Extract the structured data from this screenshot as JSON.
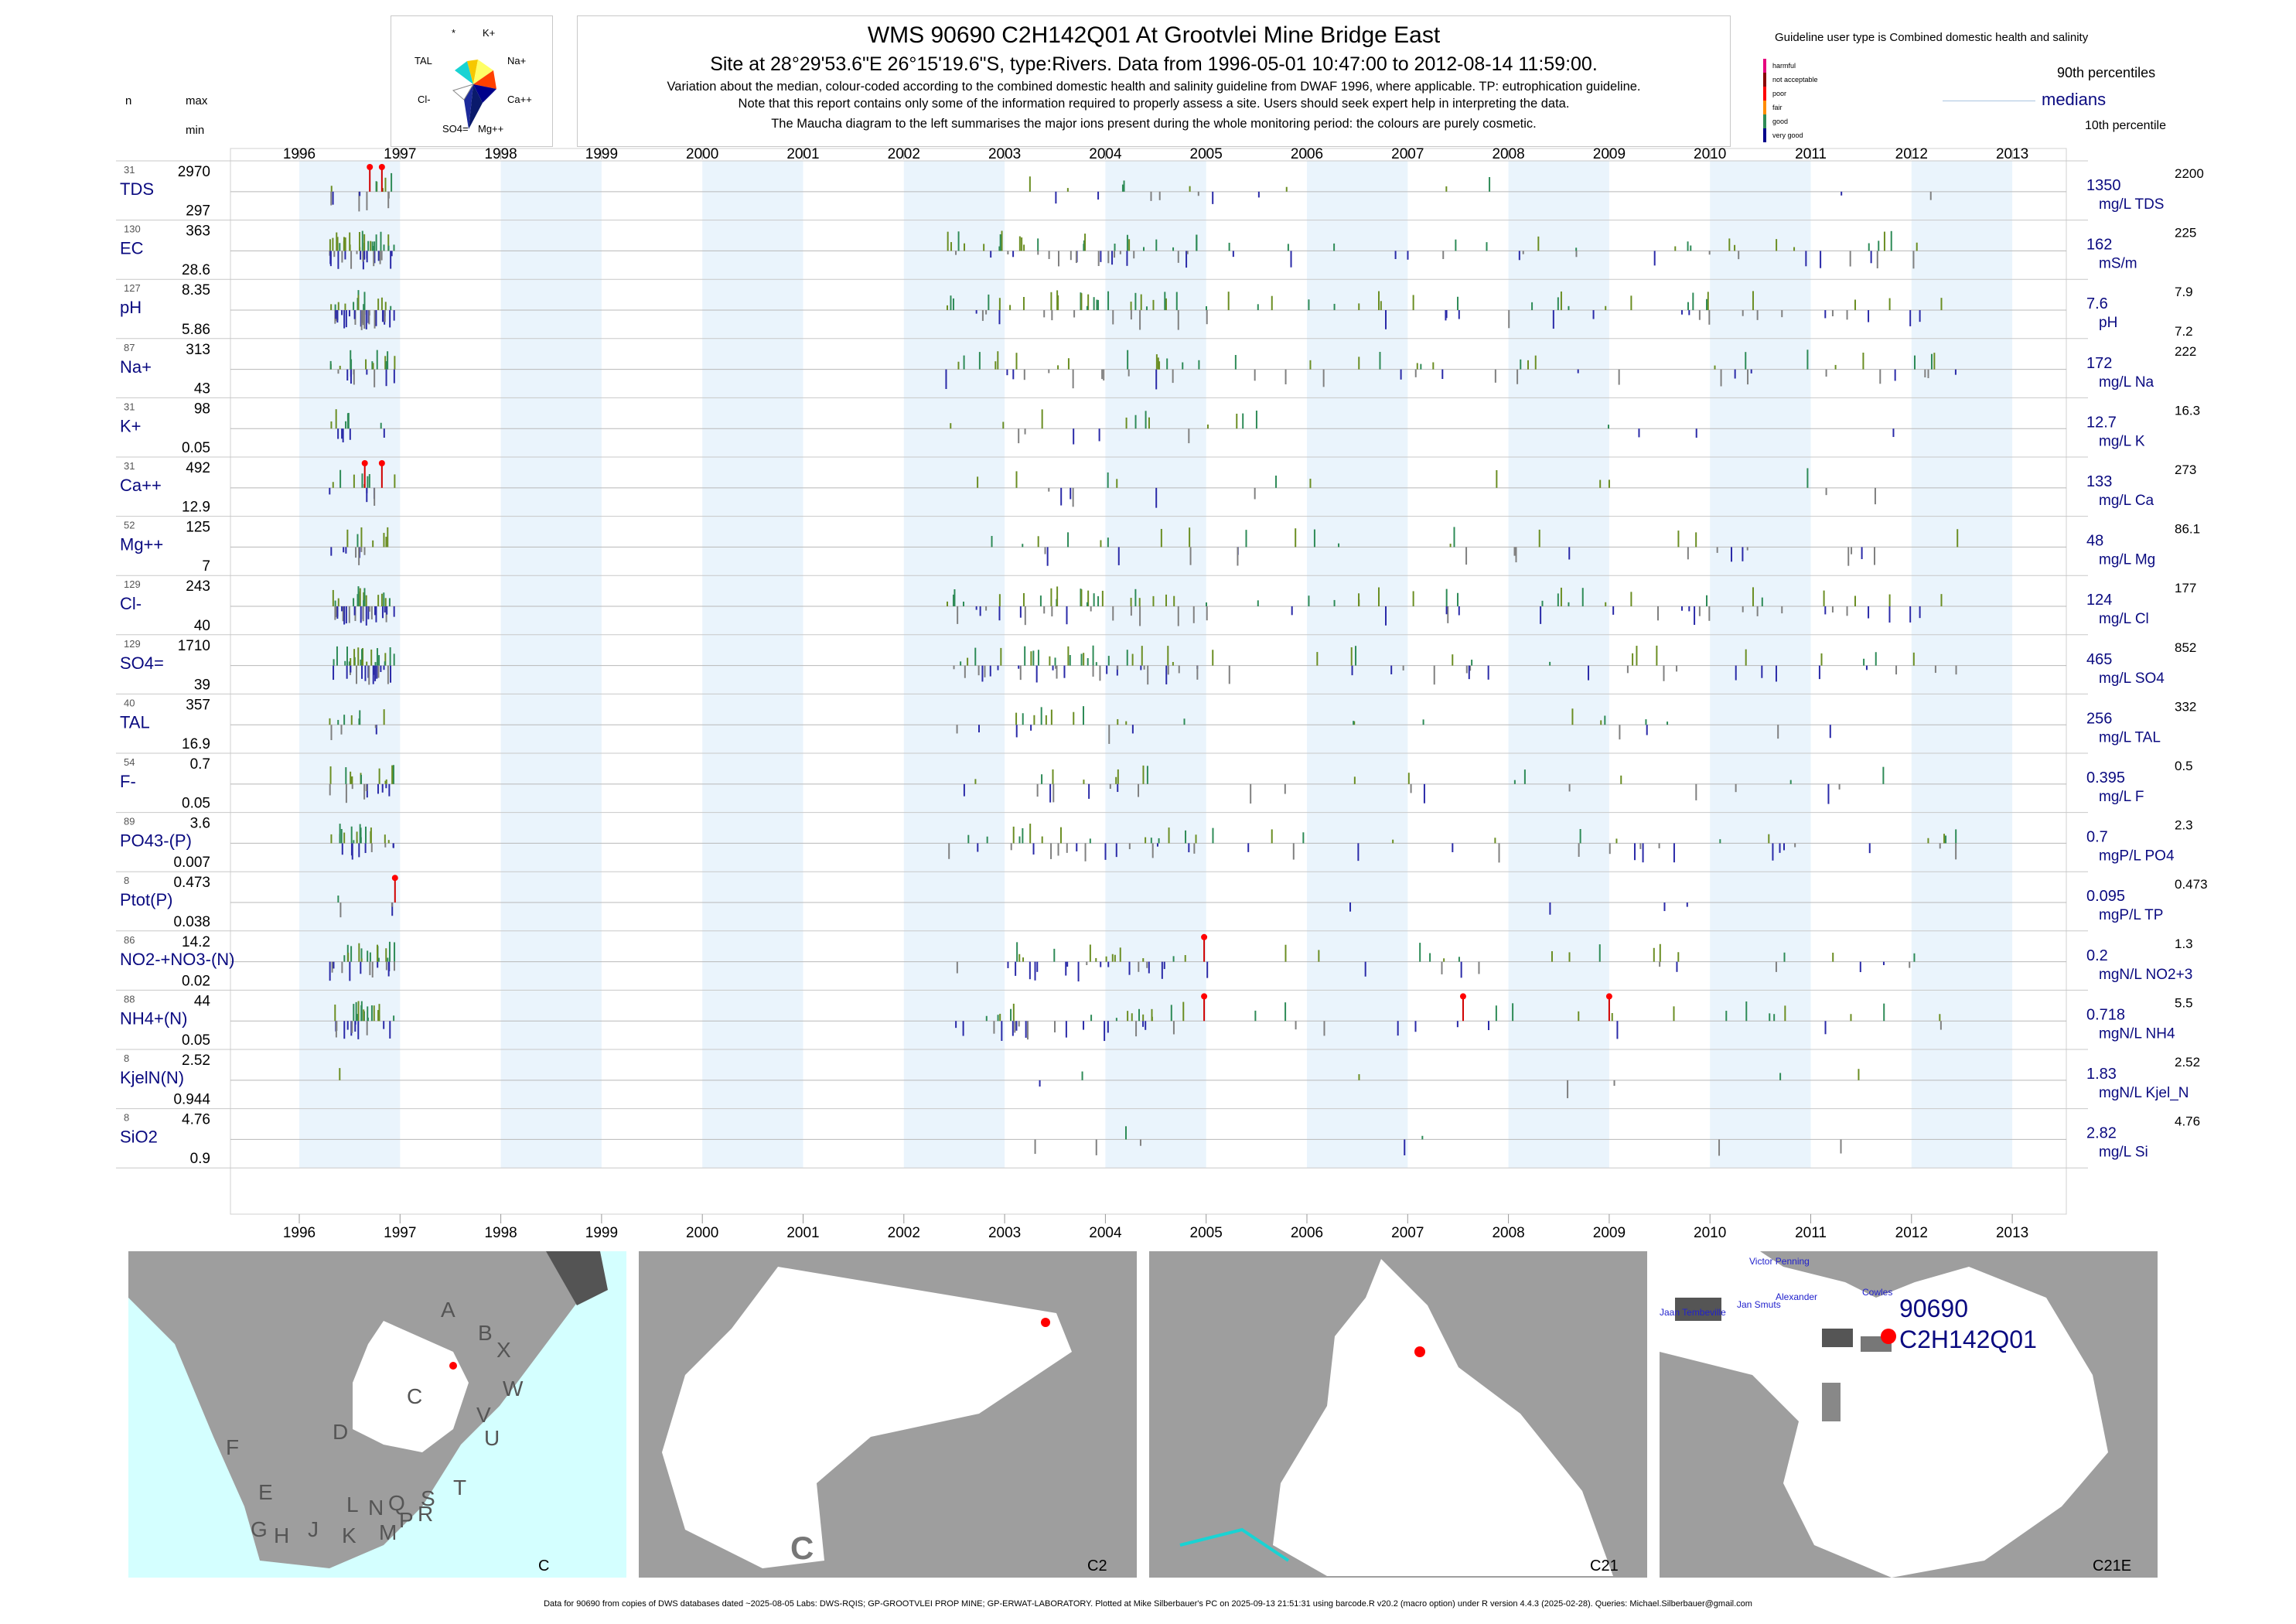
{
  "header": {
    "title": "WMS 90690 C2H142Q01 At Grootvlei Mine Bridge East",
    "subtitle": "Site at 28°29'53.6\"E 26°15'19.6\"S, type:Rivers.  Data from 1996-05-01 10:47:00 to 2012-08-14 11:59:00.",
    "note1": "Variation about the median,  colour-coded according to the combined domestic health and salinity guideline from DWAF 1996, where applicable. TP: eutrophication guideline.",
    "note2": "Note that this report contains only some of the information required to properly assess a site. Users should seek expert help in interpreting the data.",
    "note3": "The Maucha diagram to the left summarises the major ions present during the whole monitoring period: the colours are purely cosmetic."
  },
  "column_heads": {
    "n": "n",
    "max": "max",
    "min": "min"
  },
  "maucha": {
    "labels": [
      "*",
      "K+",
      "TAL",
      "Na+",
      "Cl-",
      "Ca++",
      "SO4=",
      "Mg++"
    ]
  },
  "legend": {
    "guideline_text": "Guideline user type is Combined domestic health and salinity",
    "classes": [
      "harmful",
      "not acceptable",
      "poor",
      "fair",
      "good",
      "very good"
    ],
    "class_colors": [
      "#e6007e",
      "#8b0000",
      "#ff0000",
      "#ff8c00",
      "#2e8b57",
      "#00008b"
    ],
    "p90": "90th percentiles",
    "medians": "medians",
    "p10": "10th percentile"
  },
  "chart_data": {
    "type": "bar",
    "x_range": [
      1996,
      2013
    ],
    "years": [
      "1996",
      "1997",
      "1998",
      "1999",
      "2000",
      "2001",
      "2002",
      "2003",
      "2004",
      "2005",
      "2006",
      "2007",
      "2008",
      "2009",
      "2010",
      "2011",
      "2012",
      "2013"
    ],
    "series": [
      {
        "n": "31",
        "max": "2970",
        "min": "297",
        "name": "TDS",
        "median": "1350",
        "unit": "mg/L TDS",
        "p90": "2200",
        "p10": ""
      },
      {
        "n": "130",
        "max": "363",
        "min": "28.6",
        "name": "EC",
        "median": "162",
        "unit": "mS/m",
        "p90": "225",
        "p10": ""
      },
      {
        "n": "127",
        "max": "8.35",
        "min": "5.86",
        "name": "pH",
        "median": "7.6",
        "unit": "pH",
        "p90": "7.9",
        "p10": "7.2"
      },
      {
        "n": "87",
        "max": "313",
        "min": "43",
        "name": "Na+",
        "median": "172",
        "unit": "mg/L Na",
        "p90": "222",
        "p10": ""
      },
      {
        "n": "31",
        "max": "98",
        "min": "0.05",
        "name": "K+",
        "median": "12.7",
        "unit": "mg/L K",
        "p90": "16.3",
        "p10": ""
      },
      {
        "n": "31",
        "max": "492",
        "min": "12.9",
        "name": "Ca++",
        "median": "133",
        "unit": "mg/L Ca",
        "p90": "273",
        "p10": ""
      },
      {
        "n": "52",
        "max": "125",
        "min": "7",
        "name": "Mg++",
        "median": "48",
        "unit": "mg/L Mg",
        "p90": "86.1",
        "p10": ""
      },
      {
        "n": "129",
        "max": "243",
        "min": "40",
        "name": "Cl-",
        "median": "124",
        "unit": "mg/L Cl",
        "p90": "177",
        "p10": ""
      },
      {
        "n": "129",
        "max": "1710",
        "min": "39",
        "name": "SO4=",
        "median": "465",
        "unit": "mg/L SO4",
        "p90": "852",
        "p10": ""
      },
      {
        "n": "40",
        "max": "357",
        "min": "16.9",
        "name": "TAL",
        "median": "256",
        "unit": "mg/L TAL",
        "p90": "332",
        "p10": ""
      },
      {
        "n": "54",
        "max": "0.7",
        "min": "0.05",
        "name": "F-",
        "median": "0.395",
        "unit": "mg/L F",
        "p90": "0.5",
        "p10": ""
      },
      {
        "n": "89",
        "max": "3.6",
        "min": "0.007",
        "name": "PO43-(P)",
        "median": "0.7",
        "unit": "mgP/L PO4",
        "p90": "2.3",
        "p10": ""
      },
      {
        "n": "8",
        "max": "0.473",
        "min": "0.038",
        "name": "Ptot(P)",
        "median": "0.095",
        "unit": "mgP/L TP",
        "p90": "0.473",
        "p10": ""
      },
      {
        "n": "86",
        "max": "14.2",
        "min": "0.02",
        "name": "NO2-+NO3-(N)",
        "median": "0.2",
        "unit": "mgN/L NO2+3",
        "p90": "1.3",
        "p10": ""
      },
      {
        "n": "88",
        "max": "44",
        "min": "0.05",
        "name": "NH4+(N)",
        "median": "0.718",
        "unit": "mgN/L NH4",
        "p90": "5.5",
        "p10": ""
      },
      {
        "n": "8",
        "max": "2.52",
        "min": "0.944",
        "name": "KjelN(N)",
        "median": "1.83",
        "unit": "mgN/L Kjel_N",
        "p90": "2.52",
        "p10": ""
      },
      {
        "n": "8",
        "max": "4.76",
        "min": "0.9",
        "name": "SiO2",
        "median": "2.82",
        "unit": "mg/L Si",
        "p90": "4.76",
        "p10": ""
      }
    ]
  },
  "maps": [
    {
      "tag": "C",
      "letters": [
        "A",
        "B",
        "X",
        "W",
        "C",
        "V",
        "D",
        "U",
        "T",
        "F",
        "E",
        "S",
        "G",
        "H",
        "J",
        "L",
        "N",
        "Q",
        "K",
        "M",
        "P",
        "R"
      ]
    },
    {
      "tag": "C2",
      "big": "C"
    },
    {
      "tag": "C21"
    },
    {
      "tag": "C21E",
      "site_id": "90690",
      "site_code": "C2H142Q01",
      "places": [
        "Victor Penning",
        "Cowles",
        "Alexander",
        "Jan Smuts",
        "Jaan Tembeville"
      ]
    }
  ],
  "footer": "Data for 90690 from copies of DWS databases dated ~2025-08-05 Labs: DWS-RQIS; GP-GROOTVLEI PROP MINE; GP-ERWAT-LABORATORY. Plotted at Mike Silberbauer's PC on 2025-09-13 21:51:31 using barcode.R v20.2 (macro option) under R version 4.4.3 (2025-02-28). Queries: Michael.Silberbauer@gmail.com"
}
